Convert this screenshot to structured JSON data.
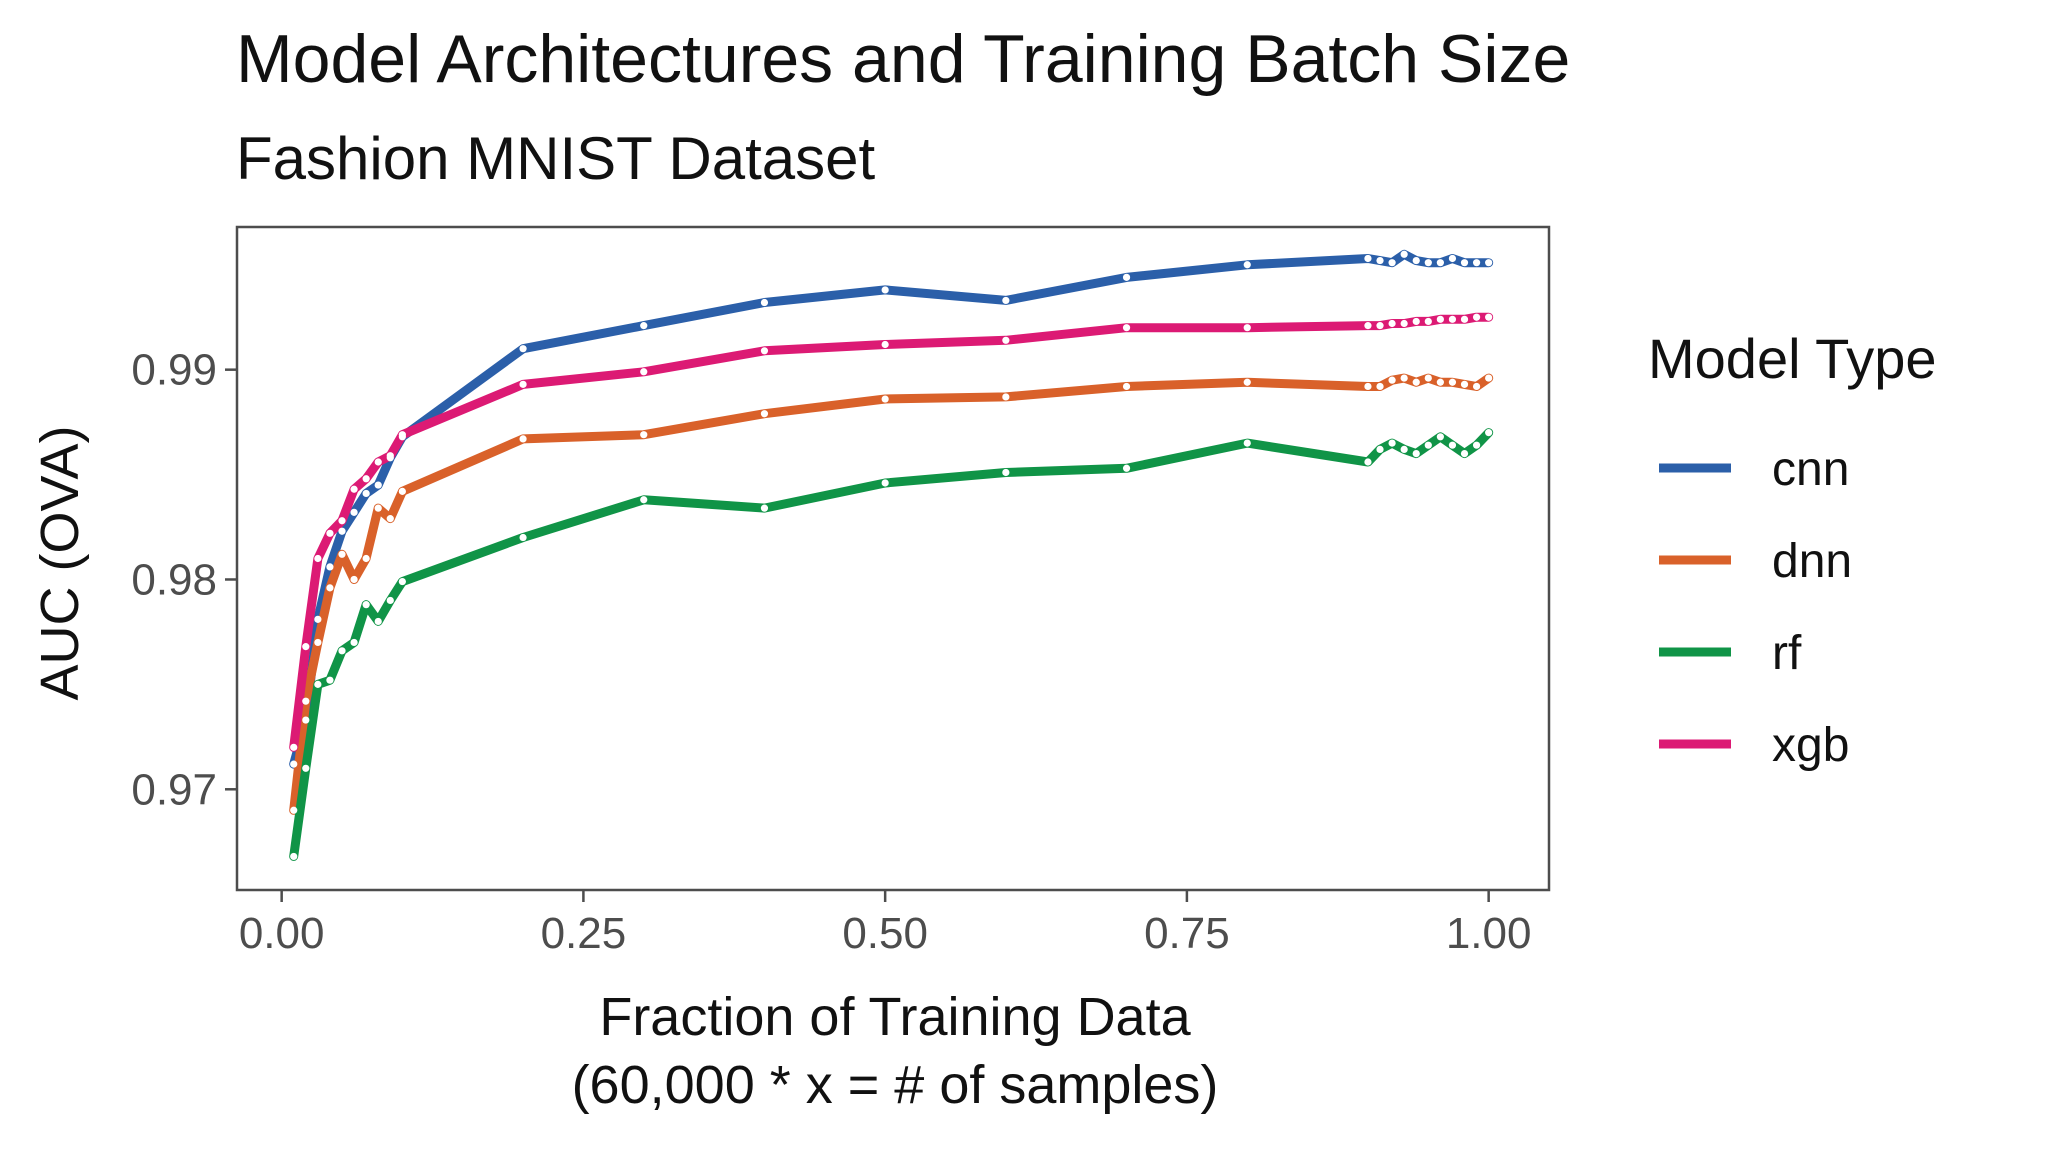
{
  "chart_data": {
    "type": "line",
    "title": "Model Architectures and Training Batch Size",
    "subtitle": "Fashion MNIST Dataset",
    "xlabel_lines": [
      "Fraction of Training Data",
      "(60,000 * x = # of samples)"
    ],
    "ylabel": "AUC (OVA)",
    "xlim": [
      -0.037,
      1.05
    ],
    "ylim": [
      0.9652,
      0.9968
    ],
    "xticks": [
      0.0,
      0.25,
      0.5,
      0.75,
      1.0
    ],
    "xtick_labels": [
      "0.00",
      "0.25",
      "0.50",
      "0.75",
      "1.00"
    ],
    "yticks": [
      0.97,
      0.98,
      0.99
    ],
    "ytick_labels": [
      "0.97",
      "0.98",
      "0.99"
    ],
    "legend_title": "Model Type",
    "x": [
      0.01,
      0.02,
      0.03,
      0.04,
      0.05,
      0.06,
      0.07,
      0.08,
      0.09,
      0.1,
      0.2,
      0.3,
      0.4,
      0.5,
      0.6,
      0.7,
      0.8,
      0.9,
      0.91,
      0.92,
      0.93,
      0.94,
      0.95,
      0.96,
      0.97,
      0.98,
      0.99,
      1.0
    ],
    "series": [
      {
        "name": "cnn",
        "color": "#2b5fa9",
        "values": [
          0.9712,
          0.9733,
          0.9781,
          0.9806,
          0.9823,
          0.9832,
          0.9841,
          0.9845,
          0.9858,
          0.9868,
          0.991,
          0.9921,
          0.9932,
          0.9938,
          0.9933,
          0.9944,
          0.995,
          0.9953,
          0.9952,
          0.9951,
          0.9955,
          0.9952,
          0.9951,
          0.9951,
          0.9953,
          0.9951,
          0.9951,
          0.9951
        ]
      },
      {
        "name": "dnn",
        "color": "#d9612a",
        "values": [
          0.969,
          0.9742,
          0.977,
          0.9796,
          0.9812,
          0.98,
          0.981,
          0.9834,
          0.9829,
          0.9842,
          0.9867,
          0.9869,
          0.9879,
          0.9886,
          0.9887,
          0.9892,
          0.9894,
          0.9892,
          0.9892,
          0.9895,
          0.9896,
          0.9894,
          0.9896,
          0.9894,
          0.9894,
          0.9893,
          0.9892,
          0.9896
        ]
      },
      {
        "name": "rf",
        "color": "#109447",
        "values": [
          0.9668,
          0.971,
          0.975,
          0.9752,
          0.9766,
          0.977,
          0.9788,
          0.978,
          0.979,
          0.9799,
          0.982,
          0.9838,
          0.9834,
          0.9846,
          0.9851,
          0.9853,
          0.9865,
          0.9856,
          0.9862,
          0.9865,
          0.9862,
          0.986,
          0.9864,
          0.9868,
          0.9864,
          0.986,
          0.9864,
          0.987
        ]
      },
      {
        "name": "xgb",
        "color": "#dc1a74",
        "values": [
          0.972,
          0.9768,
          0.981,
          0.9822,
          0.9828,
          0.9843,
          0.9848,
          0.9856,
          0.9859,
          0.9869,
          0.9893,
          0.9899,
          0.9909,
          0.9912,
          0.9914,
          0.992,
          0.992,
          0.9921,
          0.9921,
          0.9922,
          0.9922,
          0.9923,
          0.9923,
          0.9924,
          0.9924,
          0.9924,
          0.9925,
          0.9925
        ]
      }
    ]
  }
}
